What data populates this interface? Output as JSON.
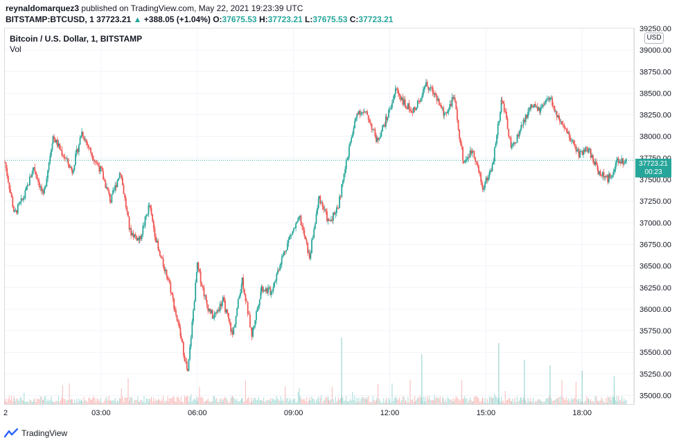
{
  "header": {
    "author": "reynaldomarquez3",
    "published_text": "published on TradingView.com, May 22, 2021 19:23:39 UTC",
    "symbol": "BITSTAMP:BTCUSD, 1",
    "last": "37723.21",
    "change_arrow": "▲",
    "change": "+388.05 (+1.04%)",
    "o_label": "O:",
    "o_value": "37675.53",
    "h_label": "H:",
    "h_value": "37723.21",
    "l_label": "L:",
    "l_value": "37675.53",
    "c_label": "C:",
    "c_value": "37723.21"
  },
  "legend": {
    "title": "Bitcoin / U.S. Dollar, 1, BITSTAMP",
    "volume": "Vol"
  },
  "currency": "USD",
  "price_tag": {
    "price": "37723.21",
    "countdown": "00:23"
  },
  "footer": {
    "brand": "TradingView"
  },
  "colors": {
    "up": "#26a69a",
    "down": "#ef5350",
    "grid": "#f0f3fa",
    "text": "#131722"
  },
  "chart_data": {
    "type": "line",
    "title": "Bitcoin / U.S. Dollar, 1, BITSTAMP",
    "x_tick_labels": [
      "2",
      "03:00",
      "06:00",
      "09:00",
      "12:00",
      "15:00",
      "18:00"
    ],
    "x_tick_hours": [
      0,
      3,
      6,
      9,
      12,
      15,
      18
    ],
    "x_range_hours": [
      0,
      19.4
    ],
    "y_tick_labels": [
      "35000.00",
      "35250.00",
      "35500.00",
      "35750.00",
      "36000.00",
      "36250.00",
      "36500.00",
      "36750.00",
      "37000.00",
      "37250.00",
      "37500.00",
      "37750.00",
      "38000.00",
      "38250.00",
      "38500.00",
      "38750.00",
      "39000.00",
      "39250.00"
    ],
    "ylim": [
      34900,
      39250
    ],
    "current_price": 37723.21,
    "grid": true,
    "series": [
      {
        "type": "candlestick",
        "x_hours": [
          0,
          0.3,
          0.6,
          0.9,
          1.2,
          1.5,
          1.8,
          2.1,
          2.4,
          2.7,
          3.0,
          3.3,
          3.6,
          3.9,
          4.2,
          4.5,
          4.8,
          5.1,
          5.3,
          5.5,
          5.7,
          6.0,
          6.3,
          6.5,
          6.8,
          7.1,
          7.4,
          7.7,
          8.0,
          8.3,
          8.6,
          8.9,
          9.2,
          9.5,
          9.8,
          10.1,
          10.4,
          10.7,
          11.0,
          11.3,
          11.6,
          11.9,
          12.2,
          12.5,
          12.8,
          13.1,
          13.4,
          13.7,
          14.0,
          14.3,
          14.6,
          14.9,
          15.2,
          15.5,
          15.8,
          16.1,
          16.4,
          16.7,
          17.0,
          17.3,
          17.6,
          17.9,
          18.2,
          18.5,
          18.8,
          19.1,
          19.4
        ],
        "close": [
          37700,
          37100,
          37300,
          37650,
          37300,
          38000,
          37800,
          37600,
          38050,
          37800,
          37600,
          37250,
          37600,
          36900,
          36800,
          37200,
          36650,
          36350,
          36000,
          35650,
          35250,
          36500,
          36050,
          35900,
          36100,
          35700,
          36350,
          35700,
          36250,
          36200,
          36550,
          36850,
          37050,
          36600,
          37300,
          37000,
          37200,
          37800,
          38300,
          38250,
          37950,
          38200,
          38550,
          38350,
          38300,
          38600,
          38500,
          38250,
          38450,
          37700,
          37850,
          37400,
          37650,
          38450,
          37850,
          38100,
          38350,
          38300,
          38450,
          38150,
          38000,
          37800,
          37850,
          37600,
          37500,
          37700,
          37723.21
        ]
      },
      {
        "type": "volume",
        "x_hours": [
          10.5,
          13.0,
          15.4,
          16.2,
          17.0,
          18.0,
          19.0
        ],
        "values": [
          12,
          9,
          11,
          8,
          7,
          6,
          5
        ],
        "note_unit": "relative"
      }
    ]
  }
}
